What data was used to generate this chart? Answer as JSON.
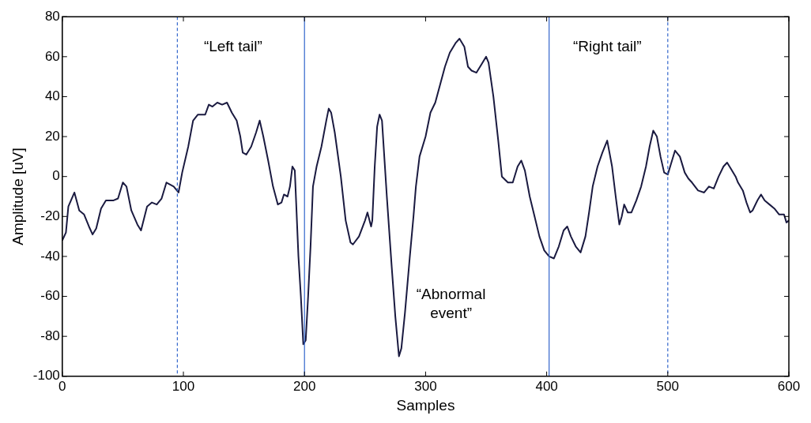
{
  "chart_data": {
    "type": "line",
    "xlabel": "Samples",
    "ylabel": "Amplitude [uV]",
    "xlim": [
      0,
      600
    ],
    "xticks": [
      0,
      100,
      200,
      300,
      400,
      500,
      600
    ],
    "ylim": [
      -100,
      80
    ],
    "yticks": [
      -100,
      -80,
      -60,
      -40,
      -20,
      0,
      20,
      40,
      60,
      80
    ],
    "grid": false,
    "legend": false,
    "marker": "none",
    "line_style": "solid",
    "series": [
      {
        "color": "#1a1a40",
        "x": [
          0,
          3,
          5,
          10,
          14,
          18,
          22,
          25,
          28,
          32,
          36,
          42,
          46,
          50,
          53,
          57,
          62,
          65,
          70,
          74,
          78,
          82,
          86,
          89,
          92,
          96,
          99,
          104,
          108,
          112,
          118,
          121,
          124,
          128,
          132,
          136,
          140,
          144,
          147,
          149,
          152,
          156,
          160,
          163,
          166,
          170,
          174,
          178,
          181,
          183,
          186,
          188,
          190,
          192,
          195,
          197,
          199,
          201,
          203,
          205,
          207,
          210,
          214,
          218,
          220,
          222,
          225,
          230,
          234,
          238,
          240,
          245,
          250,
          252,
          255,
          256,
          258,
          260,
          262,
          264,
          268,
          272,
          275,
          278,
          280,
          283,
          287,
          290,
          292,
          295,
          300,
          304,
          308,
          312,
          316,
          320,
          325,
          328,
          332,
          335,
          338,
          342,
          346,
          350,
          352,
          356,
          360,
          363,
          368,
          372,
          376,
          379,
          382,
          386,
          390,
          394,
          398,
          402,
          406,
          410,
          414,
          417,
          420,
          424,
          428,
          432,
          435,
          438,
          442,
          446,
          450,
          454,
          457,
          460,
          462,
          464,
          467,
          470,
          474,
          478,
          482,
          485,
          488,
          491,
          494,
          497,
          500,
          502,
          506,
          510,
          514,
          517,
          520,
          525,
          530,
          534,
          538,
          542,
          546,
          549,
          552,
          556,
          558,
          562,
          565,
          568,
          570,
          574,
          577,
          580,
          584,
          588,
          592,
          596,
          598,
          600
        ],
        "values": [
          -32,
          -28,
          -15,
          -8,
          -17,
          -19,
          -25,
          -29,
          -26,
          -16,
          -12,
          -12,
          -11,
          -3,
          -5,
          -17,
          -24,
          -27,
          -15,
          -13,
          -14,
          -11,
          -3,
          -4,
          -5,
          -8,
          2,
          15,
          28,
          31,
          31,
          36,
          35,
          37,
          36,
          37,
          32,
          28,
          20,
          12,
          11,
          15,
          22,
          28,
          20,
          8,
          -5,
          -14,
          -13,
          -9,
          -10,
          -5,
          5,
          3,
          -40,
          -60,
          -84,
          -82,
          -60,
          -35,
          -5,
          5,
          15,
          28,
          34,
          32,
          22,
          0,
          -22,
          -33,
          -34,
          -30,
          -22,
          -18,
          -25,
          -22,
          5,
          25,
          31,
          28,
          -10,
          -45,
          -70,
          -90,
          -86,
          -68,
          -40,
          -20,
          -5,
          10,
          20,
          32,
          37,
          46,
          55,
          62,
          67,
          69,
          65,
          55,
          53,
          52,
          56,
          60,
          57,
          40,
          18,
          0,
          -3,
          -3,
          5,
          8,
          3,
          -10,
          -20,
          -30,
          -37,
          -40,
          -41,
          -35,
          -27,
          -25,
          -30,
          -35,
          -38,
          -30,
          -18,
          -5,
          5,
          12,
          18,
          5,
          -10,
          -24,
          -20,
          -14,
          -18,
          -18,
          -12,
          -5,
          5,
          15,
          23,
          20,
          10,
          2,
          1,
          5,
          13,
          10,
          2,
          -1,
          -3,
          -7,
          -8,
          -5,
          -6,
          0,
          5,
          7,
          4,
          0,
          -3,
          -7,
          -13,
          -18,
          -17,
          -12,
          -9,
          -12,
          -14,
          -16,
          -19,
          -19,
          -23,
          -22
        ]
      }
    ],
    "ref_lines": [
      {
        "axis": "x",
        "value": 95,
        "color": "#3366cc",
        "line_style": "dashed"
      },
      {
        "axis": "x",
        "value": 200,
        "color": "#3366cc",
        "line_style": "solid"
      },
      {
        "axis": "x",
        "value": 402,
        "color": "#3366cc",
        "line_style": "solid"
      },
      {
        "axis": "x",
        "value": 500,
        "color": "#3366cc",
        "line_style": "dashed"
      }
    ],
    "annotations": [
      "“Left tail”",
      "“Abnormal event”",
      "“Right tail”"
    ]
  }
}
